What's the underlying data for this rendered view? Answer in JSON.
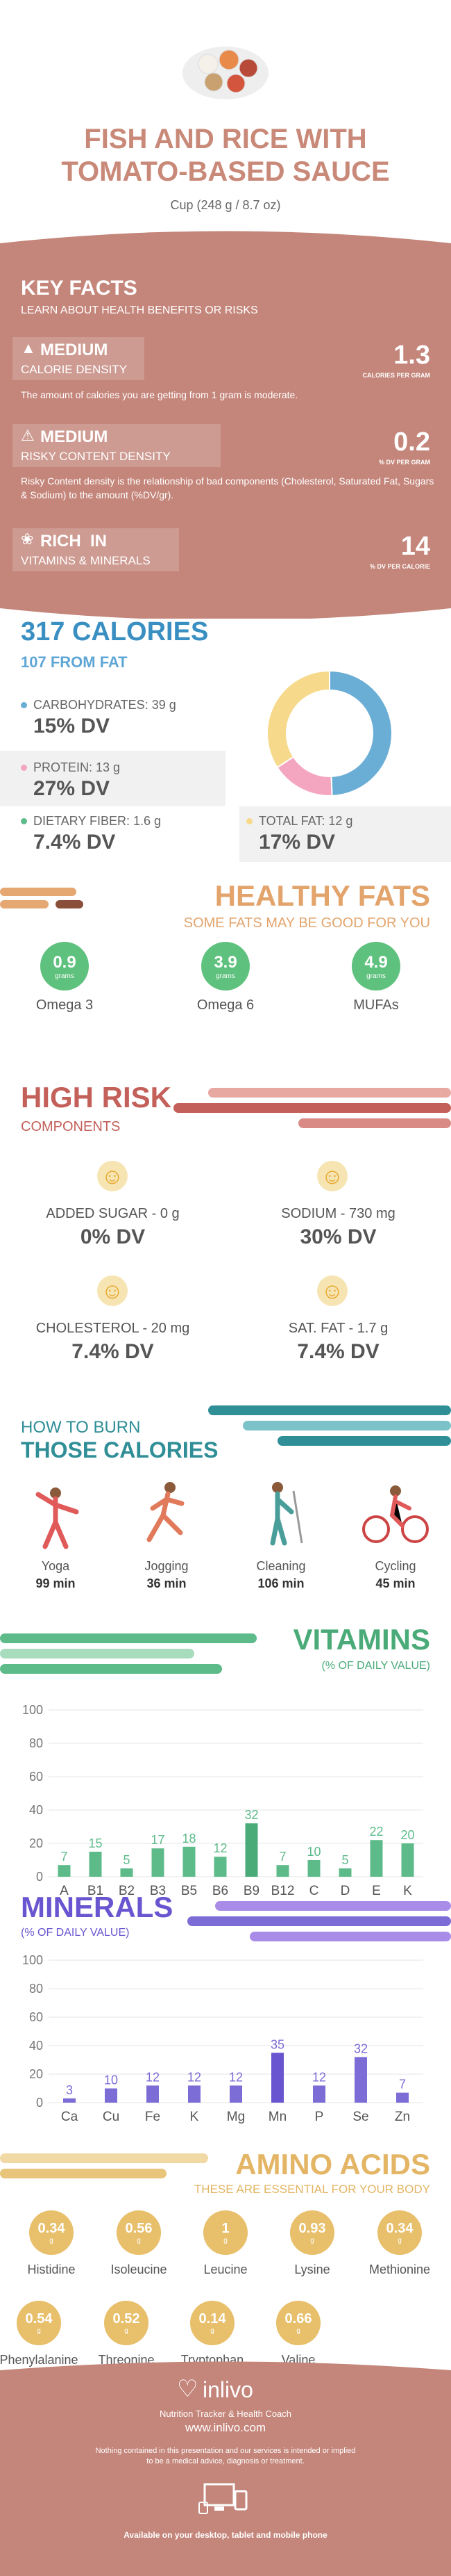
{
  "header": {
    "title_line1": "FISH AND RICE WITH",
    "title_line2": "TOMATO-BASED SAUCE",
    "serving": "Cup (248 g / 8.7 oz)"
  },
  "key_facts": {
    "title": "KEY FACTS",
    "subtitle": "LEARN ABOUT HEALTH BENEFITS OR RISKS",
    "items": [
      {
        "level": "MEDIUM",
        "label": "CALORIE DENSITY",
        "value": "1.3",
        "unit": "CALORIES PER GRAM",
        "desc": "The amount of calories you are getting from 1 gram is moderate."
      },
      {
        "level": "MEDIUM",
        "label": "RISKY CONTENT DENSITY",
        "value": "0.2",
        "unit": "% DV PER GRAM",
        "desc": "Risky Content density is the relationship of bad components (Cholesterol, Saturated Fat, Sugars & Sodium) to the amount (%DV/gr)."
      },
      {
        "level": "RICH  IN",
        "label": "VITAMINS & MINERALS",
        "value": "14",
        "unit": "% DV PER CALORIE",
        "desc": ""
      }
    ]
  },
  "calories": {
    "title": "317 CALORIES",
    "from_fat": "107 FROM FAT",
    "carbs_label": "CARBOHYDRATES: 39 g",
    "carbs_dv": "15% DV",
    "protein_label": "PROTEIN: 13 g",
    "protein_dv": "27% DV",
    "fiber_label": "DIETARY FIBER: 1.6 g",
    "fiber_dv": "7.4% DV",
    "fat_label": "TOTAL FAT: 12 g",
    "fat_dv": "17% DV",
    "donut": {
      "carbs": 156,
      "protein": 52,
      "fat": 108
    },
    "colors": {
      "carbs": "#6aaed6",
      "protein": "#f4a6c0",
      "fat": "#f7d98b"
    }
  },
  "healthy_fats": {
    "title": "HEALTHY FATS",
    "subtitle": "SOME FATS MAY BE GOOD FOR YOU",
    "unit": "grams",
    "items": [
      {
        "value": "0.9",
        "label": "Omega 3"
      },
      {
        "value": "3.9",
        "label": "Omega 6"
      },
      {
        "value": "4.9",
        "label": "MUFAs"
      }
    ]
  },
  "high_risk": {
    "title": "HIGH RISK",
    "subtitle": "COMPONENTS",
    "items": [
      {
        "label": "ADDED SUGAR - 0 g",
        "dv": "0% DV"
      },
      {
        "label": "SODIUM - 730 mg",
        "dv": "30% DV"
      },
      {
        "label": "CHOLESTEROL - 20 mg",
        "dv": "7.4% DV"
      },
      {
        "label": "SAT. FAT - 1.7 g",
        "dv": "7.4% DV"
      }
    ]
  },
  "burn": {
    "title1": "HOW TO BURN",
    "title2": "THOSE CALORIES",
    "items": [
      {
        "label": "Yoga",
        "time": "99 min"
      },
      {
        "label": "Jogging",
        "time": "36 min"
      },
      {
        "label": "Cleaning",
        "time": "106 min"
      },
      {
        "label": "Cycling",
        "time": "45 min"
      }
    ]
  },
  "vitamins": {
    "title": "VITAMINS",
    "subtitle": "(% OF DAILY VALUE)"
  },
  "minerals": {
    "title": "MINERALS",
    "subtitle": "(% OF DAILY VALUE)"
  },
  "chart_data": [
    {
      "type": "bar",
      "categories": [
        "A",
        "B1",
        "B2",
        "B3",
        "B5",
        "B6",
        "B9",
        "B12",
        "C",
        "D",
        "E",
        "K"
      ],
      "values": [
        7,
        15,
        5,
        17,
        18,
        12,
        32,
        7,
        10,
        5,
        22,
        20
      ],
      "ylim": [
        0,
        100
      ],
      "yticks": [
        0,
        20,
        40,
        60,
        80,
        100
      ],
      "color": "#5dbb8a",
      "highlight": "#4aab78"
    },
    {
      "type": "bar",
      "categories": [
        "Ca",
        "Cu",
        "Fe",
        "K",
        "Mg",
        "Mn",
        "P",
        "Se",
        "Zn"
      ],
      "values": [
        3,
        10,
        12,
        12,
        12,
        35,
        12,
        32,
        7
      ],
      "ylim": [
        0,
        100
      ],
      "yticks": [
        0,
        20,
        40,
        60,
        80,
        100
      ],
      "color": "#7c6cd6",
      "highlight": "#6a55d0"
    }
  ],
  "amino": {
    "title": "AMINO ACIDS",
    "subtitle": "THESE ARE ESSENTIAL FOR YOUR BODY",
    "unit": "g",
    "items": [
      {
        "value": "0.34",
        "label": "Histidine"
      },
      {
        "value": "0.56",
        "label": "Isoleucine"
      },
      {
        "value": "1",
        "label": "Leucine"
      },
      {
        "value": "0.93",
        "label": "Lysine"
      },
      {
        "value": "0.34",
        "label": "Methionine"
      },
      {
        "value": "0.54",
        "label": "Phenylalanine"
      },
      {
        "value": "0.52",
        "label": "Threonine"
      },
      {
        "value": "0.14",
        "label": "Tryptophan"
      },
      {
        "value": "0.66",
        "label": "Valine"
      }
    ]
  },
  "footer": {
    "brand": "inlivo",
    "tagline": "Nutrition Tracker & Health Coach",
    "url": "www.inlivo.com",
    "disclaimer1": "Nothing contained in this presentation and our services is intended or implied",
    "disclaimer2": "to be a medical advice, diagnosis or treatment.",
    "available": "Available on your desktop, tablet and mobile phone"
  }
}
